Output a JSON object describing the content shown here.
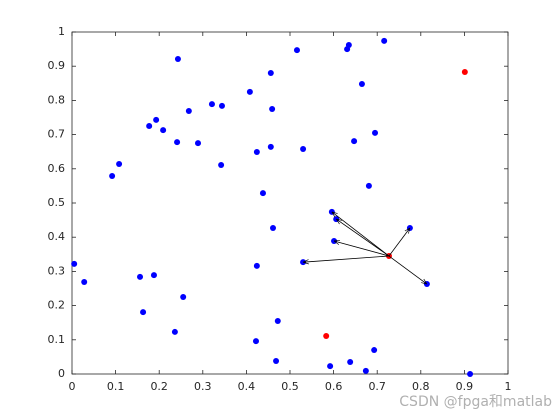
{
  "chart_data": {
    "type": "scatter",
    "xlim": [
      0,
      1
    ],
    "ylim": [
      0,
      1
    ],
    "xticks": [
      0,
      0.1,
      0.2,
      0.3,
      0.4,
      0.5,
      0.6,
      0.7,
      0.8,
      0.9,
      1
    ],
    "yticks": [
      0,
      0.1,
      0.2,
      0.3,
      0.4,
      0.5,
      0.6,
      0.7,
      0.8,
      0.9,
      1
    ],
    "grid": false,
    "series": [
      {
        "color": "#0000ff",
        "x": [
          0.635,
          0.631,
          0.716,
          0.516,
          0.243,
          0.456,
          0.665,
          0.408,
          0.321,
          0.344,
          0.459,
          0.268,
          0.193,
          0.177,
          0.209,
          0.695,
          0.241,
          0.289,
          0.647,
          0.456,
          0.424,
          0.53,
          0.108,
          0.342,
          0.092,
          0.681,
          0.438,
          0.596,
          0.606,
          0.775,
          0.461,
          0.601,
          0.53,
          0.424,
          0.005,
          0.028,
          0.156,
          0.188,
          0.255,
          0.163,
          0.236,
          0.472,
          0.422,
          0.468,
          0.592,
          0.638,
          0.693,
          0.674,
          0.913,
          0.814
        ],
        "y": [
          0.962,
          0.95,
          0.974,
          0.947,
          0.921,
          0.88,
          0.848,
          0.825,
          0.789,
          0.784,
          0.775,
          0.769,
          0.743,
          0.725,
          0.713,
          0.705,
          0.678,
          0.675,
          0.681,
          0.664,
          0.649,
          0.658,
          0.614,
          0.611,
          0.579,
          0.55,
          0.529,
          0.474,
          0.453,
          0.427,
          0.427,
          0.389,
          0.327,
          0.316,
          0.322,
          0.269,
          0.284,
          0.289,
          0.225,
          0.181,
          0.123,
          0.155,
          0.096,
          0.038,
          0.023,
          0.035,
          0.07,
          0.009,
          0.0,
          0.263
        ]
      },
      {
        "color": "#ff0000",
        "x": [
          0.901,
          0.727,
          0.583
        ],
        "y": [
          0.883,
          0.345,
          0.111
        ]
      }
    ],
    "arrows": {
      "color": "#000000",
      "from_x": 0.727,
      "from_y": 0.345,
      "to_x": [
        0.596,
        0.606,
        0.601,
        0.53,
        0.775,
        0.814
      ],
      "to_y": [
        0.474,
        0.453,
        0.389,
        0.327,
        0.427,
        0.263
      ]
    },
    "watermark": "CSDN @fpga和matlab"
  }
}
